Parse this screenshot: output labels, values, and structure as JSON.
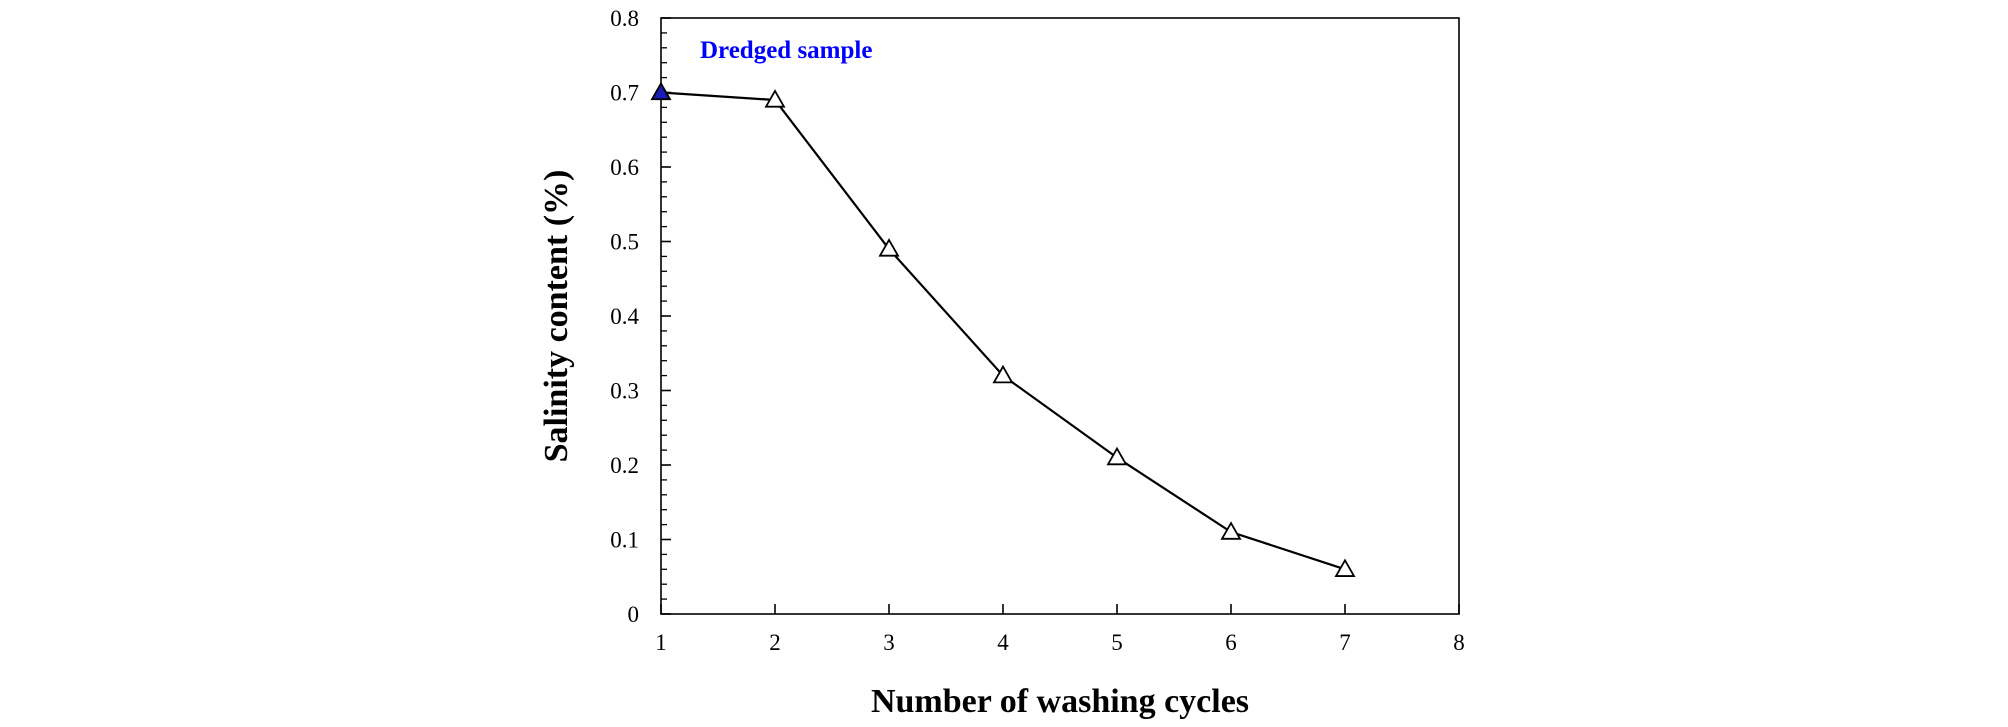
{
  "chart_data": {
    "type": "line",
    "title": "",
    "xlabel": "Number of washing cycles",
    "ylabel": "Salinity content (%)",
    "xlim": [
      1,
      8
    ],
    "ylim": [
      0,
      0.8
    ],
    "x_ticks": [
      1,
      2,
      3,
      4,
      5,
      6,
      7,
      8
    ],
    "y_ticks": [
      0,
      0.1,
      0.2,
      0.3,
      0.4,
      0.5,
      0.6,
      0.7,
      0.8
    ],
    "y_tick_labels": [
      "0",
      "0.1",
      "0.2",
      "0.3",
      "0.4",
      "0.5",
      "0.6",
      "0.7",
      "0.8"
    ],
    "y_minor_ticks_per_major": 5,
    "grid": false,
    "legend": "none",
    "series": [
      {
        "x": [
          1,
          2,
          3,
          4,
          5,
          6,
          7
        ],
        "y": [
          0.7,
          0.69,
          0.49,
          0.32,
          0.21,
          0.11,
          0.06
        ],
        "marker": "triangle-open",
        "color": "#000000"
      }
    ],
    "highlighted_point": {
      "x": 1,
      "y": 0.7,
      "color": "#1a1ab4"
    },
    "annotation": {
      "text": "Dredged sample",
      "color": "#0000ff"
    }
  }
}
